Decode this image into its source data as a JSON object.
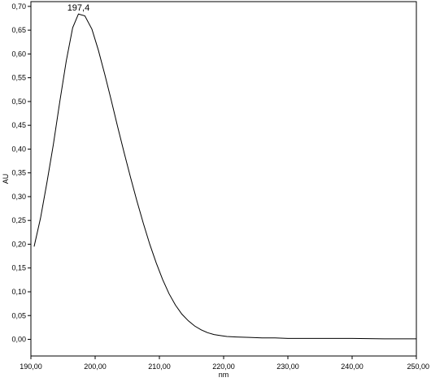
{
  "chart_data": {
    "type": "line",
    "title": "",
    "xlabel": "nm",
    "ylabel": "AU",
    "xlim": [
      190,
      250
    ],
    "ylim": [
      -0.035,
      0.71
    ],
    "x_ticks": [
      190,
      200,
      210,
      220,
      230,
      240,
      250
    ],
    "x_tick_labels": [
      "190,00",
      "200,00",
      "210,00",
      "220,00",
      "230,00",
      "240,00",
      "250,00"
    ],
    "y_ticks": [
      0.0,
      0.05,
      0.1,
      0.15,
      0.2,
      0.25,
      0.3,
      0.35,
      0.4,
      0.45,
      0.5,
      0.55,
      0.6,
      0.65,
      0.7
    ],
    "y_tick_labels": [
      "0,00",
      "0,05",
      "0,10",
      "0,15",
      "0,20",
      "0,25",
      "0,30",
      "0,35",
      "0,40",
      "0,45",
      "0,50",
      "0,55",
      "0,60",
      "0,65",
      "0,70"
    ],
    "grid": false,
    "line_color": "#000000",
    "series": [
      {
        "x": [
          190.5,
          191.5,
          192.5,
          193.5,
          194.5,
          195.5,
          196.5,
          197.4,
          198.4,
          199.5,
          200.5,
          201.5,
          202.5,
          203.5,
          204.5,
          205.5,
          206.5,
          207.5,
          208.5,
          209.5,
          210.5,
          211.5,
          212.5,
          213.5,
          214.5,
          215.5,
          216.5,
          217.5,
          218.5,
          219.5,
          220.5,
          222,
          224,
          226,
          228,
          230,
          235,
          240,
          245,
          250
        ],
        "y": [
          0.195,
          0.255,
          0.33,
          0.41,
          0.5,
          0.585,
          0.655,
          0.684,
          0.68,
          0.652,
          0.608,
          0.557,
          0.503,
          0.447,
          0.393,
          0.341,
          0.291,
          0.244,
          0.2,
          0.161,
          0.126,
          0.096,
          0.072,
          0.053,
          0.039,
          0.028,
          0.02,
          0.014,
          0.01,
          0.008,
          0.006,
          0.005,
          0.004,
          0.003,
          0.003,
          0.002,
          0.002,
          0.002,
          0.001,
          0.001
        ]
      }
    ],
    "annotations": [
      {
        "x": 197.4,
        "y": 0.684,
        "text": "197,4"
      }
    ]
  }
}
